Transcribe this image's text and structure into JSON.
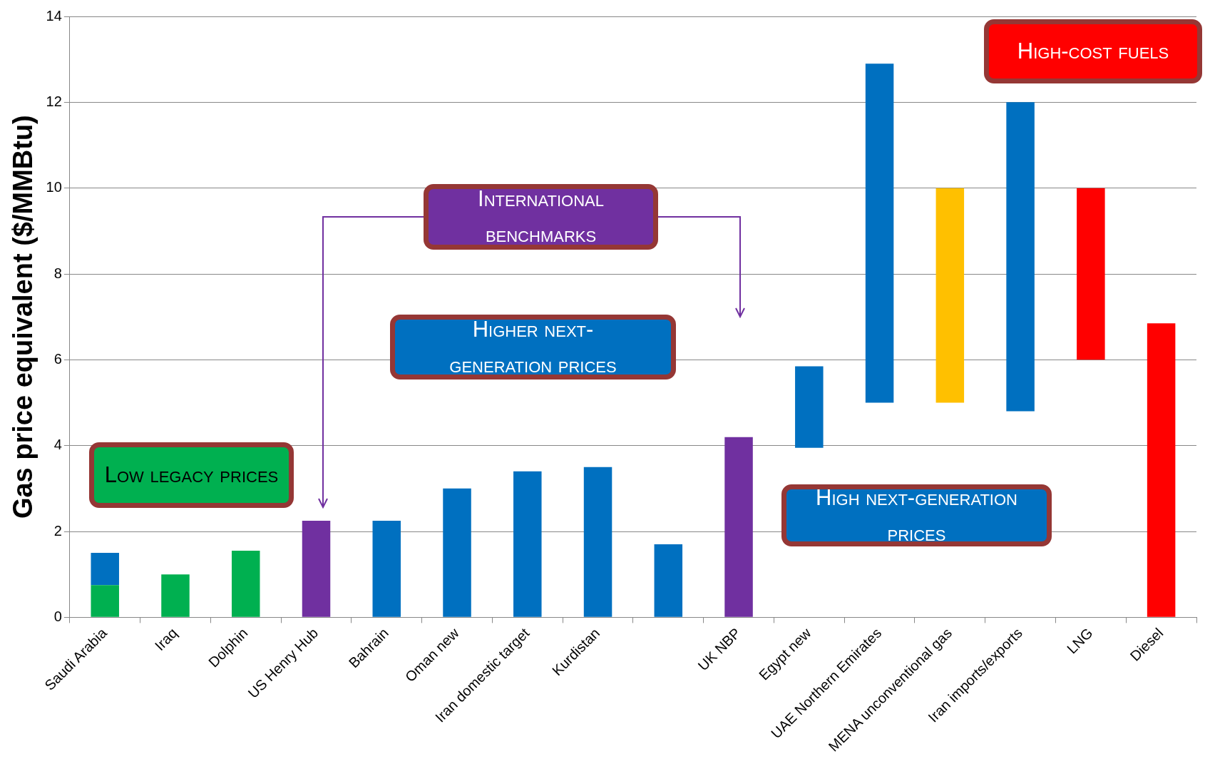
{
  "chart_data": {
    "type": "bar",
    "ylabel": "Gas price equivalent ($/MMBtu)",
    "categories": [
      "Saudi Arabia",
      "Iraq",
      "Dolphin",
      "US Henry Hub",
      "Bahrain",
      "Oman new",
      "Iran domestic target",
      "Kurdistan",
      null,
      "UK NBP",
      "Egypt new",
      "UAE Northern Emirates",
      "MENA unconventional gas",
      "Iran imports/exports",
      "LNG",
      "Diesel"
    ],
    "series": [
      {
        "base": [
          0,
          0,
          0,
          0,
          0,
          0,
          0,
          0,
          0,
          0,
          3.95,
          5,
          5,
          4.8,
          6,
          0
        ],
        "values": [
          0.75,
          1.0,
          1.55,
          2.25,
          2.25,
          3.0,
          3.4,
          3.5,
          1.7,
          4.2,
          1.9,
          7.9,
          5,
          7.2,
          4,
          6.85
        ],
        "colors": [
          "#00b050",
          "#00b050",
          "#00b050",
          "#7030a0",
          "#0070c0",
          "#0070c0",
          "#0070c0",
          "#0070c0",
          "#0070c0",
          "#7030a0",
          "#0070c0",
          "#0070c0",
          "#ffc000",
          "#0070c0",
          "#ff0000",
          "#ff0000"
        ]
      },
      {
        "base": [
          0.75,
          null,
          null,
          null,
          null,
          null,
          null,
          null,
          null,
          null,
          null,
          null,
          null,
          null,
          null,
          null
        ],
        "values": [
          0.75,
          null,
          null,
          null,
          null,
          null,
          null,
          null,
          null,
          null,
          null,
          null,
          null,
          null,
          null,
          null
        ],
        "color": "#0070c0"
      }
    ],
    "ylim": [
      0,
      14
    ],
    "yticks": [
      0,
      2,
      4,
      6,
      8,
      10,
      12,
      14
    ],
    "grid": "y",
    "legend": false,
    "annotations": [
      "Low legacy prices",
      "International benchmarks",
      "Higher next-generation prices",
      "High next-generation prices",
      "High-cost fuels"
    ]
  }
}
